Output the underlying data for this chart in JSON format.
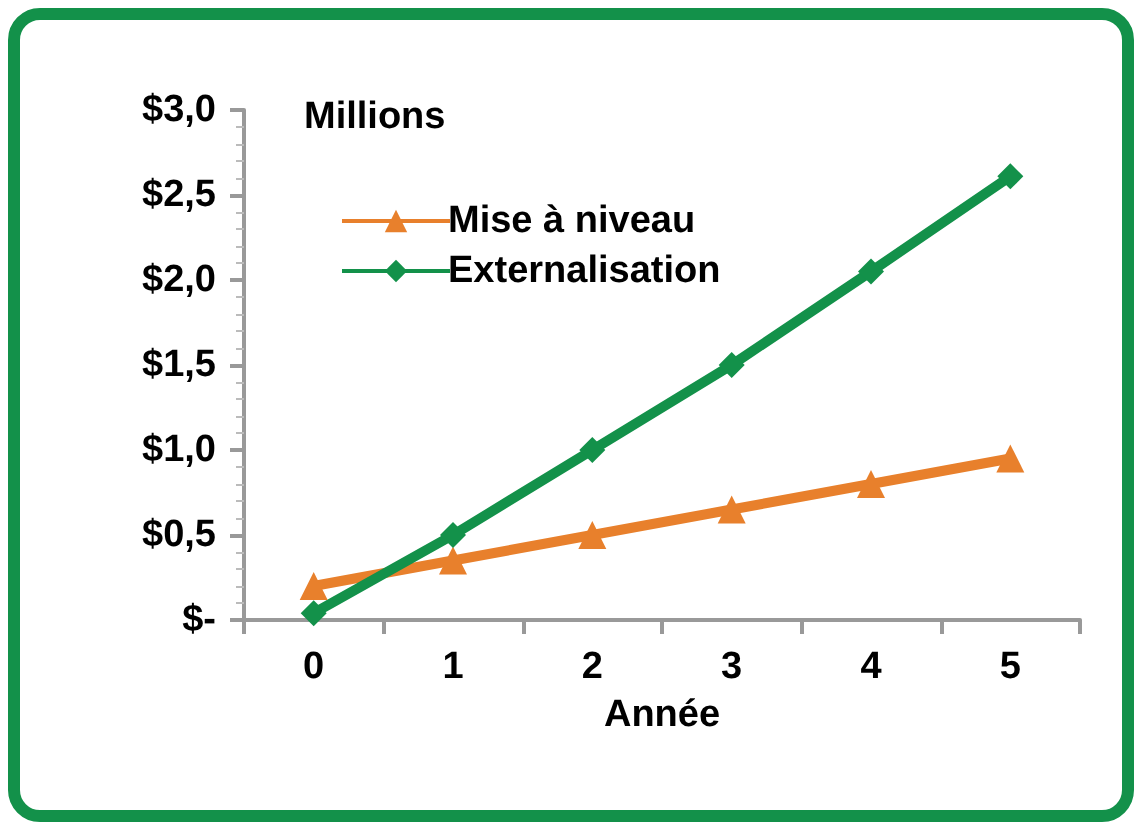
{
  "chart_data": {
    "type": "line",
    "xlabel": "Année",
    "ylabel": "Millions",
    "categories": [
      "0",
      "1",
      "2",
      "3",
      "4",
      "5"
    ],
    "series": [
      {
        "name": "Mise à niveau",
        "color": "#e8802c",
        "marker": "triangle",
        "values": [
          0.2,
          0.35,
          0.5,
          0.65,
          0.8,
          0.95
        ]
      },
      {
        "name": "Externalisation",
        "color": "#13914a",
        "marker": "diamond",
        "values": [
          0.04,
          0.5,
          1.0,
          1.5,
          2.05,
          2.61
        ]
      }
    ],
    "ylim": [
      0,
      3
    ],
    "yticks": [
      {
        "value": 0,
        "label": "$-"
      },
      {
        "value": 0.5,
        "label": "$0,5"
      },
      {
        "value": 1,
        "label": "$1,0"
      },
      {
        "value": 1.5,
        "label": "$1,5"
      },
      {
        "value": 2,
        "label": "$2,0"
      },
      {
        "value": 2.5,
        "label": "$2,5"
      },
      {
        "value": 3,
        "label": "$3,0"
      }
    ],
    "grid": false,
    "legend": "top left",
    "line_style": "solid"
  }
}
